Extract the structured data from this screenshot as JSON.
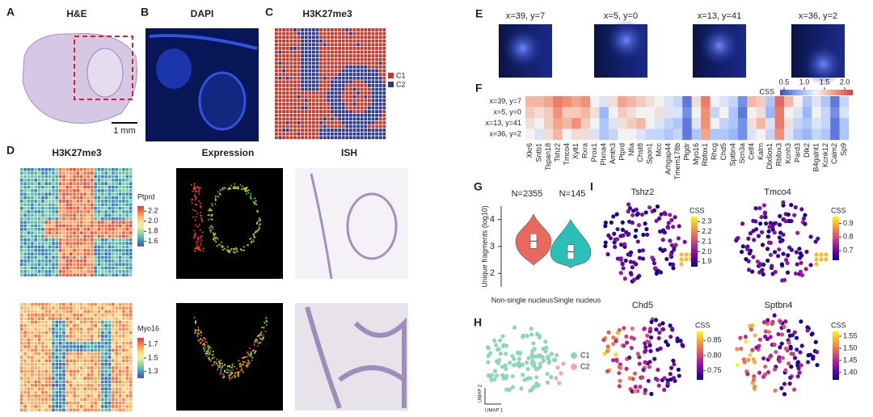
{
  "panel_a": {
    "label": "A",
    "title": "H&E",
    "scale_bar": "1 mm"
  },
  "panel_b": {
    "label": "B",
    "title": "DAPI"
  },
  "panel_c": {
    "label": "C",
    "title": "H3K27me3",
    "legend": [
      {
        "name": "C1",
        "color": "#c0392b"
      },
      {
        "name": "C2",
        "color": "#2d3a8c"
      }
    ]
  },
  "panel_d": {
    "label": "D",
    "titles": [
      "H3K27me3",
      "Expression",
      "ISH"
    ],
    "colorbars": [
      {
        "name": "Ptprd",
        "lim": [
          1.5,
          2.3
        ],
        "ticks": [
          2.2,
          {
            "value": 2,
            "label": "2.0"
          },
          1.8,
          1.6
        ]
      },
      {
        "name": "Myo16",
        "lim": [
          1.2,
          1.8
        ],
        "ticks": [
          1.7,
          1.5,
          1.3
        ]
      }
    ]
  },
  "panel_e": {
    "label": "E",
    "titles": [
      "x=39, y=7",
      "x=5, y=0",
      "x=13, y=41",
      "x=36, y=2"
    ]
  },
  "panel_f": {
    "label": "F",
    "type": "heatmap",
    "rows": [
      "x=39, y=7",
      "x=5, y=0",
      "x=13, y=41",
      "x=36, y=2"
    ],
    "columns": [
      "Xkr6",
      "Sntb1",
      "Tspan18",
      "Tshz2",
      "Tmco4",
      "Xylt1",
      "Rxra",
      "Prox1",
      "Plxna4",
      "Amth3",
      "Ptprd",
      "Nfia",
      "Chst8",
      "Spon1",
      "Mcc",
      "Arhgap44",
      "Tmem178b",
      "Ptgdr",
      "Myo16",
      "Rbfox1",
      "Rhcg",
      "Chd5",
      "Sptbn4",
      "Scn3a",
      "Celf4",
      "Kalrn",
      "Dlx6os1",
      "Rbfox3",
      "Kcnh3",
      "Pard3",
      "Dlk2",
      "B4galnt1",
      "Kcnk12",
      "Calm2",
      "Sp9"
    ],
    "values": [
      [
        1.6,
        1.6,
        1.7,
        1.9,
        1.8,
        1.7,
        1.8,
        1.3,
        1.2,
        1.4,
        1.7,
        1.6,
        1.5,
        1.4,
        1.3,
        1.2,
        1.1,
        0.6,
        1.4,
        1.9,
        1.3,
        1.2,
        1.1,
        0.7,
        1.6,
        1.5,
        1.0,
        2.0,
        1.6,
        1.3,
        1.0,
        1.2,
        1.0,
        0.6,
        1.1
      ],
      [
        1.5,
        1.4,
        1.5,
        1.8,
        1.5,
        1.5,
        1.6,
        1.4,
        0.9,
        1.3,
        1.5,
        1.4,
        1.3,
        1.3,
        1.4,
        1.2,
        1.2,
        0.7,
        1.3,
        1.8,
        1.1,
        1.3,
        1.0,
        0.6,
        1.3,
        1.4,
        0.9,
        1.9,
        1.3,
        1.2,
        0.9,
        1.3,
        1.1,
        0.7,
        1.2
      ],
      [
        1.4,
        1.3,
        1.5,
        1.7,
        1.6,
        1.8,
        1.5,
        1.3,
        1.0,
        1.2,
        1.4,
        1.5,
        1.6,
        1.3,
        1.2,
        1.1,
        1.0,
        0.6,
        1.2,
        1.8,
        1.3,
        1.1,
        1.0,
        0.7,
        1.4,
        1.6,
        1.2,
        1.9,
        1.4,
        1.1,
        1.0,
        1.2,
        1.1,
        0.6,
        1.0
      ],
      [
        1.3,
        1.2,
        1.4,
        1.6,
        1.3,
        1.4,
        1.4,
        1.2,
        1.0,
        1.1,
        1.3,
        1.3,
        1.2,
        1.1,
        1.1,
        1.0,
        1.1,
        0.6,
        1.0,
        1.7,
        1.0,
        1.0,
        0.9,
        0.7,
        1.2,
        1.3,
        1.1,
        1.8,
        1.2,
        1.0,
        0.9,
        1.1,
        1.0,
        0.6,
        1.0
      ]
    ],
    "colorbar": {
      "title": "CSS",
      "lim": [
        0.4,
        2.2
      ],
      "ticks": [
        0.5,
        {
          "value": 1,
          "label": "1.0"
        },
        1.5,
        {
          "value": 2,
          "label": "2.0"
        }
      ]
    }
  },
  "panel_g": {
    "label": "G",
    "type": "violin",
    "ylabel": "Unique fragments (log10)",
    "ylim": [
      1.5,
      4.5
    ],
    "yticks": [
      2,
      3,
      4
    ],
    "categories": [
      "Non-single nucleus",
      "Single nucleus"
    ],
    "medians": [
      3.2,
      2.8
    ],
    "counts": [
      "N=2355",
      "N=145"
    ],
    "colors": [
      "#e8695e",
      "#2bbfb8"
    ]
  },
  "panel_h": {
    "label": "H",
    "legend": [
      {
        "name": "C1",
        "color": "#8fd6b8"
      },
      {
        "name": "C2",
        "color": "#f2a3c0"
      }
    ],
    "xlabel": "UMAP 1",
    "ylabel": "UMAP 2"
  },
  "panel_i": {
    "label": "I",
    "plots": [
      {
        "title": "Tshz2",
        "colorbar_title": "CSS",
        "lim": [
          1.85,
          2.35
        ],
        "ticks": [
          2.3,
          2.2,
          2.1,
          {
            "value": 2,
            "label": "2.0"
          },
          1.9
        ]
      },
      {
        "title": "Tmco4",
        "colorbar_title": "CSS",
        "lim": [
          0.63,
          0.95
        ],
        "ticks": [
          0.9,
          0.8,
          0.7
        ]
      },
      {
        "title": "Chd5",
        "colorbar_title": "CSS",
        "lim": [
          0.72,
          0.88
        ],
        "ticks": [
          0.85,
          {
            "value": 0.8,
            "label": "0.80"
          },
          0.75
        ]
      },
      {
        "title": "Sptbn4",
        "colorbar_title": "CSS",
        "lim": [
          1.37,
          1.57
        ],
        "ticks": [
          1.55,
          {
            "value": 1.5,
            "label": "1.50"
          },
          1.45,
          {
            "value": 1.4,
            "label": "1.40"
          }
        ]
      }
    ]
  }
}
